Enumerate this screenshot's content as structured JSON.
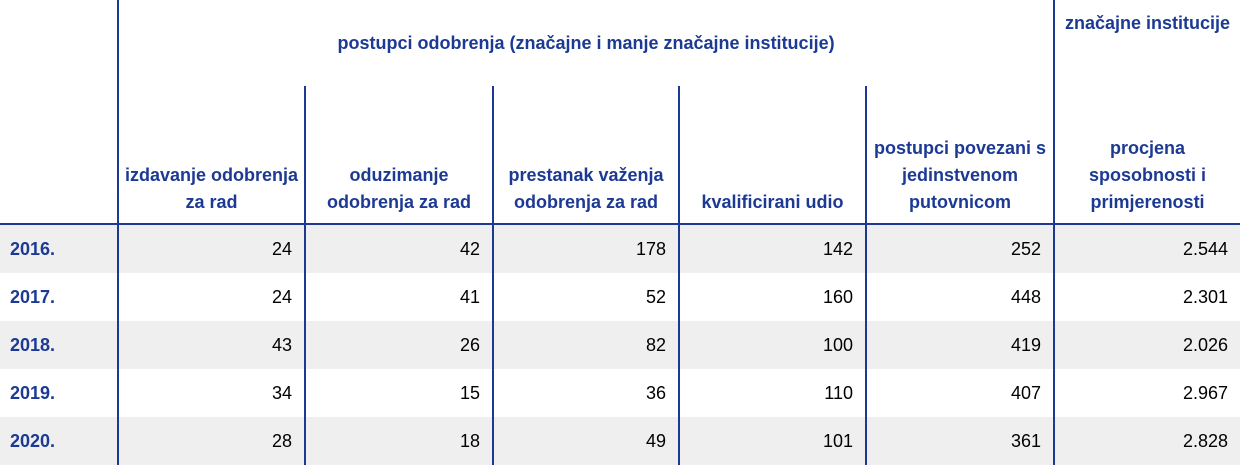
{
  "table": {
    "group_header": "postupci odobrenja (značajne i manje značajne institucije)",
    "sig_header": "značajne institucije",
    "columns": [
      "izdavanje odobrenja za rad",
      "oduzimanje odobrenja za rad",
      "prestanak važenja odobrenja za rad",
      "kvalificirani udio",
      "postupci povezani s jedinstvenom putovnicom",
      "procjena sposobnosti i primjerenosti"
    ],
    "rows": [
      {
        "year": "2016.",
        "values": [
          "24",
          "42",
          "178",
          "142",
          "252",
          "2.544"
        ]
      },
      {
        "year": "2017.",
        "values": [
          "24",
          "41",
          "52",
          "160",
          "448",
          "2.301"
        ]
      },
      {
        "year": "2018.",
        "values": [
          "43",
          "26",
          "82",
          "100",
          "419",
          "2.026"
        ]
      },
      {
        "year": "2019.",
        "values": [
          "34",
          "15",
          "36",
          "110",
          "407",
          "2.967"
        ]
      },
      {
        "year": "2020.",
        "values": [
          "28",
          "18",
          "49",
          "101",
          "361",
          "2.828"
        ]
      }
    ]
  },
  "colors": {
    "header_blue": "#1c3a94",
    "row_shade": "#efefef"
  },
  "chart_data": {
    "type": "table",
    "categories": [
      "2016.",
      "2017.",
      "2018.",
      "2019.",
      "2020."
    ],
    "series": [
      {
        "name": "izdavanje odobrenja za rad",
        "values": [
          24,
          24,
          43,
          34,
          28
        ]
      },
      {
        "name": "oduzimanje odobrenja za rad",
        "values": [
          42,
          41,
          26,
          15,
          18
        ]
      },
      {
        "name": "prestanak važenja odobrenja za rad",
        "values": [
          178,
          52,
          82,
          36,
          49
        ]
      },
      {
        "name": "kvalificirani udio",
        "values": [
          142,
          160,
          100,
          110,
          101
        ]
      },
      {
        "name": "postupci povezani s jedinstvenom putovnicom",
        "values": [
          252,
          448,
          419,
          407,
          361
        ]
      },
      {
        "name": "procjena sposobnosti i primjerenosti",
        "values": [
          2544,
          2301,
          2026,
          2967,
          2828
        ]
      }
    ]
  }
}
